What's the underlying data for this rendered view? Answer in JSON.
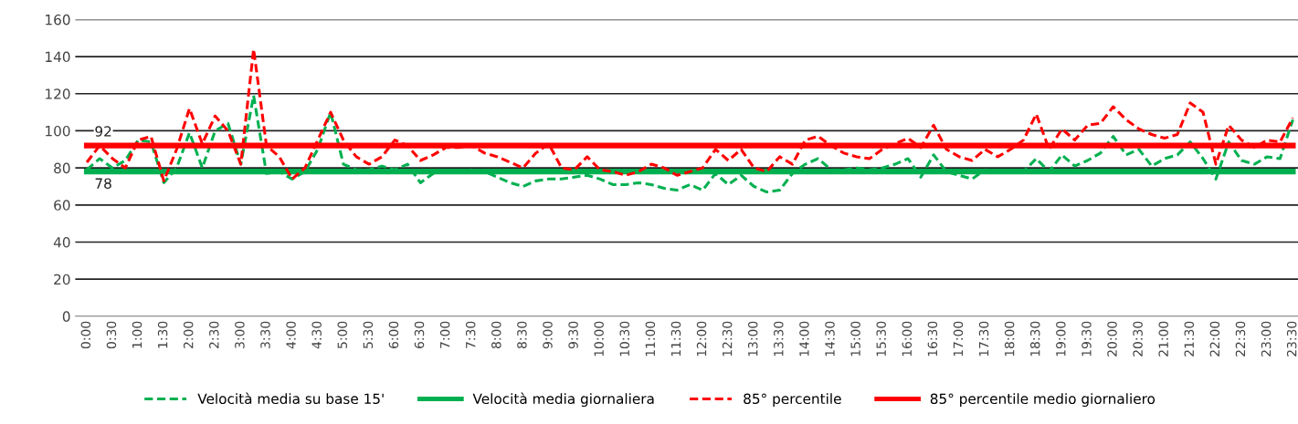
{
  "chart_data": {
    "type": "line",
    "categories": [
      "0:00",
      null,
      "0:30",
      null,
      "1:00",
      null,
      "1:30",
      null,
      "2:00",
      null,
      "2:30",
      null,
      "3:00",
      null,
      "3:30",
      null,
      "4:00",
      null,
      "4:30",
      null,
      "5:00",
      null,
      "5:30",
      null,
      "6:00",
      null,
      "6:30",
      null,
      "7:00",
      null,
      "7:30",
      null,
      "8:00",
      null,
      "8:30",
      null,
      "9:00",
      null,
      "9:30",
      null,
      "10:00",
      null,
      "10:30",
      null,
      "11:00",
      null,
      "11:30",
      null,
      "12:00",
      null,
      "12:30",
      null,
      "13:00",
      null,
      "13:30",
      null,
      "14:00",
      null,
      "14:30",
      null,
      "15:00",
      null,
      "15:30",
      null,
      "16:00",
      null,
      "16:30",
      null,
      "17:00",
      null,
      "17:30",
      null,
      "18:00",
      null,
      "18:30",
      null,
      "19:00",
      null,
      "19:30",
      null,
      "20:00",
      null,
      "20:30",
      null,
      "21:00",
      null,
      "21:30",
      null,
      "22:00",
      null,
      "22:30",
      null,
      "23:00",
      null,
      "23:30"
    ],
    "series": [
      {
        "name": "Velocità media su base 15'",
        "color": "#00b050",
        "line_style": "dashed",
        "values": [
          79,
          85,
          80,
          84,
          95,
          94,
          72,
          80,
          99,
          80,
          100,
          104,
          82,
          119,
          77,
          78,
          74,
          78,
          90,
          110,
          82,
          79,
          79,
          81,
          79,
          82,
          72,
          77,
          78,
          78,
          79,
          78,
          75,
          72,
          70,
          73,
          74,
          74,
          75,
          76,
          74,
          71,
          71,
          72,
          71,
          69,
          68,
          71,
          68,
          77,
          71,
          76,
          70,
          67,
          68,
          77,
          82,
          85,
          79,
          79,
          80,
          79,
          80,
          82,
          85,
          75,
          87,
          78,
          76,
          74,
          79,
          78,
          78,
          78,
          85,
          78,
          87,
          81,
          84,
          88,
          97,
          87,
          90,
          81,
          85,
          87,
          94,
          85,
          74,
          94,
          84,
          82,
          86,
          85,
          106
        ]
      },
      {
        "name": "Velocità media giornaliera",
        "color": "#00b050",
        "line_style": "solid",
        "values": [
          78,
          78,
          78,
          78,
          78,
          78,
          78,
          78,
          78,
          78,
          78,
          78,
          78,
          78,
          78,
          78,
          78,
          78,
          78,
          78,
          78,
          78,
          78,
          78,
          78,
          78,
          78,
          78,
          78,
          78,
          78,
          78,
          78,
          78,
          78,
          78,
          78,
          78,
          78,
          78,
          78,
          78,
          78,
          78,
          78,
          78,
          78,
          78,
          78,
          78,
          78,
          78,
          78,
          78,
          78,
          78,
          78,
          78,
          78,
          78,
          78,
          78,
          78,
          78,
          78,
          78,
          78,
          78,
          78,
          78,
          78,
          78,
          78,
          78,
          78,
          78,
          78,
          78,
          78,
          78,
          78,
          78,
          78,
          78,
          78,
          78,
          78,
          78,
          78,
          78,
          78,
          78,
          78,
          78,
          78
        ],
        "value_labels": [
          "78",
          null,
          null,
          null,
          null,
          null,
          null,
          null,
          null,
          null,
          null,
          null,
          null,
          null,
          null,
          null,
          null,
          null,
          null,
          null,
          null,
          null,
          null,
          null,
          null,
          null,
          null,
          null,
          null,
          null,
          null,
          null,
          null,
          null,
          null,
          null,
          null,
          null,
          null,
          null,
          null,
          null,
          null,
          null,
          null,
          null,
          null,
          null,
          null,
          null,
          null,
          null,
          null,
          null,
          null,
          null,
          null,
          null,
          null,
          null,
          null,
          null,
          null,
          null,
          null,
          null,
          null,
          null,
          null,
          null,
          null,
          null,
          null,
          null,
          null,
          null,
          null,
          null,
          null,
          null,
          null,
          null,
          null,
          null,
          null,
          null,
          null,
          null,
          null,
          null,
          null,
          null,
          null,
          null,
          null
        ]
      },
      {
        "name": "85° percentile",
        "color": "#ff0000",
        "line_style": "dashed",
        "values": [
          83,
          92,
          85,
          80,
          95,
          97,
          73,
          90,
          112,
          93,
          108,
          100,
          82,
          144,
          92,
          86,
          74,
          80,
          95,
          110,
          95,
          86,
          82,
          86,
          95,
          92,
          84,
          87,
          91,
          91,
          92,
          88,
          86,
          83,
          80,
          88,
          93,
          80,
          79,
          86,
          79,
          78,
          76,
          78,
          82,
          80,
          76,
          78,
          80,
          90,
          84,
          90,
          80,
          78,
          86,
          82,
          95,
          97,
          92,
          88,
          86,
          85,
          90,
          93,
          96,
          91,
          103,
          90,
          86,
          84,
          90,
          86,
          90,
          95,
          109,
          90,
          101,
          95,
          103,
          104,
          113,
          106,
          101,
          98,
          96,
          98,
          115,
          110,
          82,
          103,
          95,
          91,
          95,
          94,
          107
        ]
      },
      {
        "name": "85° percentile medio giornaliero",
        "color": "#ff0000",
        "line_style": "solid",
        "values": [
          92,
          92,
          92,
          92,
          92,
          92,
          92,
          92,
          92,
          92,
          92,
          92,
          92,
          92,
          92,
          92,
          92,
          92,
          92,
          92,
          92,
          92,
          92,
          92,
          92,
          92,
          92,
          92,
          92,
          92,
          92,
          92,
          92,
          92,
          92,
          92,
          92,
          92,
          92,
          92,
          92,
          92,
          92,
          92,
          92,
          92,
          92,
          92,
          92,
          92,
          92,
          92,
          92,
          92,
          92,
          92,
          92,
          92,
          92,
          92,
          92,
          92,
          92,
          92,
          92,
          92,
          92,
          92,
          92,
          92,
          92,
          92,
          92,
          92,
          92,
          92,
          92,
          92,
          92,
          92,
          92,
          92,
          92,
          92,
          92,
          92,
          92,
          92,
          92,
          92,
          92,
          92,
          92,
          92,
          92
        ],
        "value_labels": [
          "92",
          null,
          null,
          null,
          null,
          null,
          null,
          null,
          null,
          null,
          null,
          null,
          null,
          null,
          null,
          null,
          null,
          null,
          null,
          null,
          null,
          null,
          null,
          null,
          null,
          null,
          null,
          null,
          null,
          null,
          null,
          null,
          null,
          null,
          null,
          null,
          null,
          null,
          null,
          null,
          null,
          null,
          null,
          null,
          null,
          null,
          null,
          null,
          null,
          null,
          null,
          null,
          null,
          null,
          null,
          null,
          null,
          null,
          null,
          null,
          null,
          null,
          null,
          null,
          null,
          null,
          null,
          null,
          null,
          null,
          null,
          null,
          null,
          null,
          null,
          null,
          null,
          null,
          null,
          null,
          null,
          null,
          null,
          null,
          null,
          null,
          null,
          null,
          null,
          null,
          null,
          null,
          null,
          null,
          null
        ]
      }
    ],
    "ylim": [
      0,
      160
    ],
    "yticks": [
      0,
      20,
      40,
      60,
      80,
      100,
      120,
      140,
      160
    ],
    "grid": "y",
    "legend": "bottom",
    "marker": "none"
  }
}
